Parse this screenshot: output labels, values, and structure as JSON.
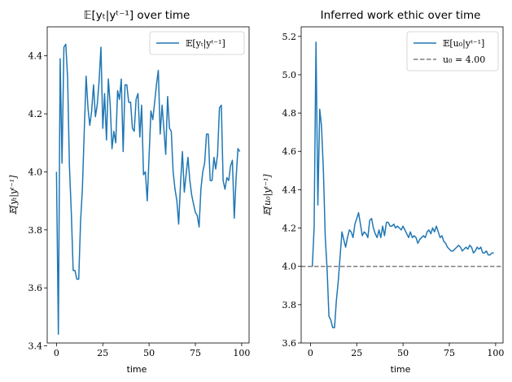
{
  "colors": {
    "series": "#1f77b4",
    "reference": "#7f7f7f",
    "axis": "#000000"
  },
  "chart_data": [
    {
      "type": "line",
      "title": "𝔼[yₜ|yᵗ⁻¹] over time",
      "xlabel": "time",
      "ylabel": "𝔼[yₜ|yᵗ⁻¹]",
      "xlim": [
        -5,
        104
      ],
      "ylim": [
        3.41,
        4.5
      ],
      "xticks": [
        0,
        25,
        50,
        75,
        100
      ],
      "yticks": [
        3.4,
        3.6,
        3.8,
        4.0,
        4.2,
        4.4
      ],
      "ytick_labels": [
        "3.4",
        "3.6",
        "3.8",
        "4.0",
        "4.2",
        "4.4"
      ],
      "legend_position": "top-right",
      "grid": false,
      "series": [
        {
          "name": "𝔼[yₜ|yᵗ⁻¹]",
          "style": "solid",
          "x": [
            0,
            1,
            2,
            3,
            4,
            5,
            6,
            7,
            8,
            9,
            10,
            11,
            12,
            13,
            14,
            15,
            16,
            17,
            18,
            19,
            20,
            21,
            22,
            23,
            24,
            25,
            26,
            27,
            28,
            29,
            30,
            31,
            32,
            33,
            34,
            35,
            36,
            37,
            38,
            39,
            40,
            41,
            42,
            43,
            44,
            45,
            46,
            47,
            48,
            49,
            50,
            51,
            52,
            53,
            54,
            55,
            56,
            57,
            58,
            59,
            60,
            61,
            62,
            63,
            64,
            65,
            66,
            67,
            68,
            69,
            70,
            71,
            72,
            73,
            74,
            75,
            76,
            77,
            78,
            79,
            80,
            81,
            82,
            83,
            84,
            85,
            86,
            87,
            88,
            89,
            90,
            91,
            92,
            93,
            94,
            95,
            96,
            97,
            98,
            99
          ],
          "values": [
            4.0,
            3.44,
            4.39,
            4.03,
            4.43,
            4.44,
            4.33,
            4.02,
            3.86,
            3.66,
            3.66,
            3.63,
            3.63,
            3.83,
            3.94,
            4.14,
            4.33,
            4.22,
            4.16,
            4.21,
            4.3,
            4.19,
            4.23,
            4.31,
            4.43,
            4.15,
            4.27,
            4.11,
            4.32,
            4.23,
            4.08,
            4.14,
            4.1,
            4.28,
            4.25,
            4.32,
            4.07,
            4.3,
            4.3,
            4.24,
            4.24,
            4.15,
            4.14,
            4.25,
            4.27,
            4.12,
            4.23,
            3.99,
            4.0,
            3.9,
            4.05,
            4.21,
            4.18,
            4.24,
            4.3,
            4.35,
            4.13,
            4.23,
            4.15,
            4.06,
            4.26,
            4.15,
            4.14,
            4.0,
            3.94,
            3.9,
            3.82,
            3.96,
            4.07,
            3.93,
            3.99,
            4.05,
            3.97,
            3.92,
            3.89,
            3.86,
            3.85,
            3.81,
            3.94,
            4.0,
            4.03,
            4.13,
            4.13,
            3.97,
            3.97,
            4.05,
            4.01,
            4.06,
            4.22,
            4.23,
            3.97,
            3.94,
            3.98,
            3.97,
            4.02,
            4.04,
            3.84,
            3.98,
            4.08,
            4.07
          ]
        }
      ]
    },
    {
      "type": "line",
      "title": "Inferred work ethic over time",
      "xlabel": "time",
      "ylabel": "𝔼[u₀|yᵗ⁻¹]",
      "xlim": [
        -5,
        104
      ],
      "ylim": [
        3.6,
        5.25
      ],
      "xticks": [
        0,
        25,
        50,
        75,
        100
      ],
      "yticks": [
        3.6,
        3.8,
        4.0,
        4.2,
        4.4,
        4.6,
        4.8,
        5.0,
        5.2
      ],
      "ytick_labels": [
        "3.6",
        "3.8",
        "4.0",
        "4.2",
        "4.4",
        "4.6",
        "4.8",
        "5.0",
        "5.2"
      ],
      "legend_position": "top-right",
      "grid": false,
      "series": [
        {
          "name": "𝔼[u₀|yᵗ⁻¹]",
          "style": "solid",
          "x": [
            0,
            1,
            2,
            3,
            4,
            5,
            6,
            7,
            8,
            9,
            10,
            11,
            12,
            13,
            14,
            15,
            16,
            17,
            18,
            19,
            20,
            21,
            22,
            23,
            24,
            25,
            26,
            27,
            28,
            29,
            30,
            31,
            32,
            33,
            34,
            35,
            36,
            37,
            38,
            39,
            40,
            41,
            42,
            43,
            44,
            45,
            46,
            47,
            48,
            49,
            50,
            51,
            52,
            53,
            54,
            55,
            56,
            57,
            58,
            59,
            60,
            61,
            62,
            63,
            64,
            65,
            66,
            67,
            68,
            69,
            70,
            71,
            72,
            73,
            74,
            75,
            76,
            77,
            78,
            79,
            80,
            81,
            82,
            83,
            84,
            85,
            86,
            87,
            88,
            89,
            90,
            91,
            92,
            93,
            94,
            95,
            96,
            97,
            98,
            99
          ],
          "values": [
            4.0,
            4.0,
            4.2,
            5.17,
            4.32,
            4.82,
            4.73,
            4.5,
            4.15,
            3.98,
            3.74,
            3.72,
            3.68,
            3.68,
            3.82,
            3.92,
            4.05,
            4.18,
            4.14,
            4.1,
            4.15,
            4.19,
            4.18,
            4.15,
            4.22,
            4.25,
            4.28,
            4.22,
            4.16,
            4.18,
            4.17,
            4.15,
            4.24,
            4.25,
            4.2,
            4.17,
            4.15,
            4.19,
            4.15,
            4.21,
            4.16,
            4.23,
            4.23,
            4.21,
            4.21,
            4.22,
            4.2,
            4.21,
            4.2,
            4.19,
            4.21,
            4.19,
            4.17,
            4.15,
            4.18,
            4.15,
            4.16,
            4.15,
            4.12,
            4.14,
            4.15,
            4.16,
            4.15,
            4.18,
            4.19,
            4.17,
            4.2,
            4.18,
            4.21,
            4.18,
            4.15,
            4.16,
            4.13,
            4.12,
            4.1,
            4.09,
            4.08,
            4.08,
            4.09,
            4.1,
            4.11,
            4.1,
            4.08,
            4.09,
            4.1,
            4.09,
            4.11,
            4.1,
            4.07,
            4.08,
            4.1,
            4.09,
            4.1,
            4.07,
            4.07,
            4.08,
            4.06,
            4.06,
            4.07,
            4.07
          ]
        },
        {
          "name": "u₀ = 4.00",
          "style": "dashed",
          "x": [
            -5,
            104
          ],
          "values": [
            4.0,
            4.0
          ]
        }
      ]
    }
  ]
}
